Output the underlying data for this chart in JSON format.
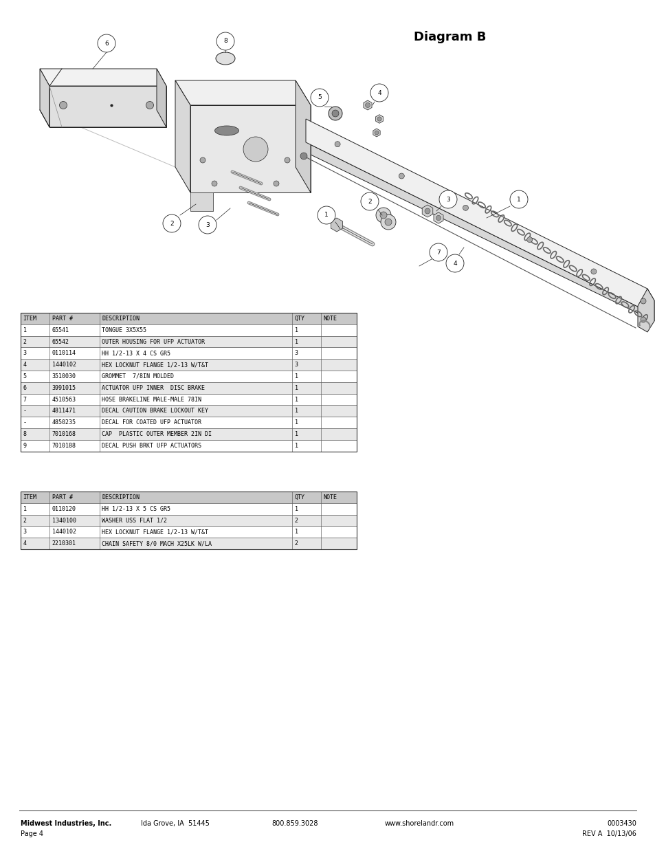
{
  "title": "Diagram B",
  "background_color": "#ffffff",
  "page_width": 9.54,
  "page_height": 12.35,
  "footer_left1": "Midwest Industries, Inc.",
  "footer_left2": "Ida Grove, IA  51445",
  "footer_left3": "800.859.3028",
  "footer_left4": "www.shorelandr.com",
  "footer_right1": "0003430",
  "footer_right2": "REV A  10/13/06",
  "footer_page": "Page 4",
  "table1_title_row": [
    "ITEM",
    "PART #",
    "DESCRIPTION",
    "QTY",
    "NOTE"
  ],
  "table1_rows": [
    [
      "1",
      "65541",
      "TONGUE 3X5X55",
      "1",
      ""
    ],
    [
      "2",
      "65542",
      "OUTER HOUSING FOR UFP ACTUATOR",
      "1",
      ""
    ],
    [
      "3",
      "0110114",
      "HH 1/2-13 X 4 CS GR5",
      "3",
      ""
    ],
    [
      "4",
      "1440102",
      "HEX LOCKNUT FLANGE 1/2-13 W/T&T",
      "3",
      ""
    ],
    [
      "5",
      "3510030",
      "GROMMET  7/8IN MOLDED",
      "1",
      ""
    ],
    [
      "6",
      "3991015",
      "ACTUATOR UFP INNER  DISC BRAKE",
      "1",
      ""
    ],
    [
      "7",
      "4510563",
      "HOSE BRAKELINE MALE-MALE 78IN",
      "1",
      ""
    ],
    [
      "-",
      "4811471",
      "DECAL CAUTION BRAKE LOCKOUT KEY",
      "1",
      ""
    ],
    [
      "-",
      "4850235",
      "DECAL FOR COATED UFP ACTUATOR",
      "1",
      ""
    ],
    [
      "8",
      "7010168",
      "CAP  PLASTIC OUTER MEMBER 2IN DI",
      "1",
      ""
    ],
    [
      "9",
      "7010188",
      "DECAL PUSH BRKT UFP ACTUATORS",
      "1",
      ""
    ]
  ],
  "table2_title_row": [
    "ITEM",
    "PART #",
    "DESCRIPTION",
    "QTY",
    "NOTE"
  ],
  "table2_rows": [
    [
      "1",
      "0110120",
      "HH 1/2-13 X 5 CS GR5",
      "1",
      ""
    ],
    [
      "2",
      "1340100",
      "WASHER USS FLAT 1/2",
      "2",
      ""
    ],
    [
      "3",
      "1440102",
      "HEX LOCKNUT FLANGE 1/2-13 W/T&T",
      "1",
      ""
    ],
    [
      "4",
      "2210301",
      "CHAIN SAFETY 8/0 MACH X25LK W/LA",
      "2",
      ""
    ]
  ],
  "col_widths1": [
    0.42,
    0.73,
    2.8,
    0.42,
    0.52
  ],
  "col_widths2": [
    0.42,
    0.73,
    2.8,
    0.42,
    0.52
  ],
  "header_bg": "#c8c8c8",
  "row_bg_alt": "#e8e8e8",
  "row_bg_norm": "#ffffff",
  "font_size_table": 6.0,
  "font_size_title": 13,
  "font_size_footer": 7.0,
  "line_color": "#222222",
  "fill_light": "#f0f0f0",
  "fill_mid": "#d8d8d8",
  "fill_dark": "#b8b8b8"
}
